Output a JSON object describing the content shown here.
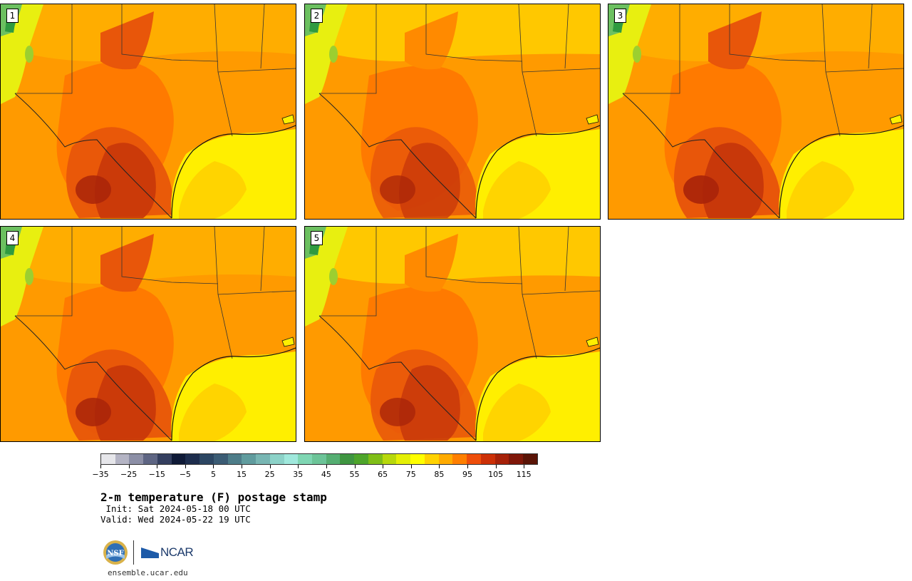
{
  "panels": [
    {
      "id": "1",
      "label": "1",
      "heat": 1.0,
      "heat2": 0.9
    },
    {
      "id": "2",
      "label": "2",
      "heat": 0.6,
      "heat2": 0.7
    },
    {
      "id": "3",
      "label": "3",
      "heat": 1.0,
      "heat2": 1.0
    },
    {
      "id": "4",
      "label": "4",
      "heat": 0.9,
      "heat2": 0.9
    },
    {
      "id": "5",
      "label": "5",
      "heat": 0.75,
      "heat2": 0.8
    }
  ],
  "colorbar": {
    "colors": [
      "#e6e6ea",
      "#b4b4c4",
      "#8c8fa6",
      "#5e6583",
      "#343f5f",
      "#0f1a37",
      "#1d2d4d",
      "#2c4662",
      "#3b5c74",
      "#4e7d89",
      "#609c9e",
      "#78b6b3",
      "#8cd2c8",
      "#9fe8dc",
      "#7fd6b3",
      "#6cc498",
      "#55ae72",
      "#3f9541",
      "#4ea52b",
      "#7fbe17",
      "#b7d80c",
      "#e4ef05",
      "#ffff00",
      "#ffd200",
      "#ffab00",
      "#ff7f00",
      "#ee4e0a",
      "#cc3007",
      "#a62109",
      "#7f1709",
      "#5a1407"
    ],
    "tick_labels": [
      "-35",
      "-25",
      "-15",
      "-5",
      "5",
      "15",
      "25",
      "35",
      "45",
      "55",
      "65",
      "75",
      "85",
      "95",
      "105",
      "115"
    ],
    "tick_values": [
      -35,
      -25,
      -15,
      -5,
      5,
      15,
      25,
      35,
      45,
      55,
      65,
      75,
      85,
      95,
      105,
      115
    ],
    "min": -35,
    "max": 120
  },
  "title": "2-m temperature (F) postage stamp",
  "init": " Init: Sat 2024-05-18 00 UTC",
  "valid": "Valid: Wed 2024-05-22 19 UTC",
  "ncar_text": "NCAR",
  "nsf_text": "NSF",
  "site": "ensemble.ucar.edu"
}
